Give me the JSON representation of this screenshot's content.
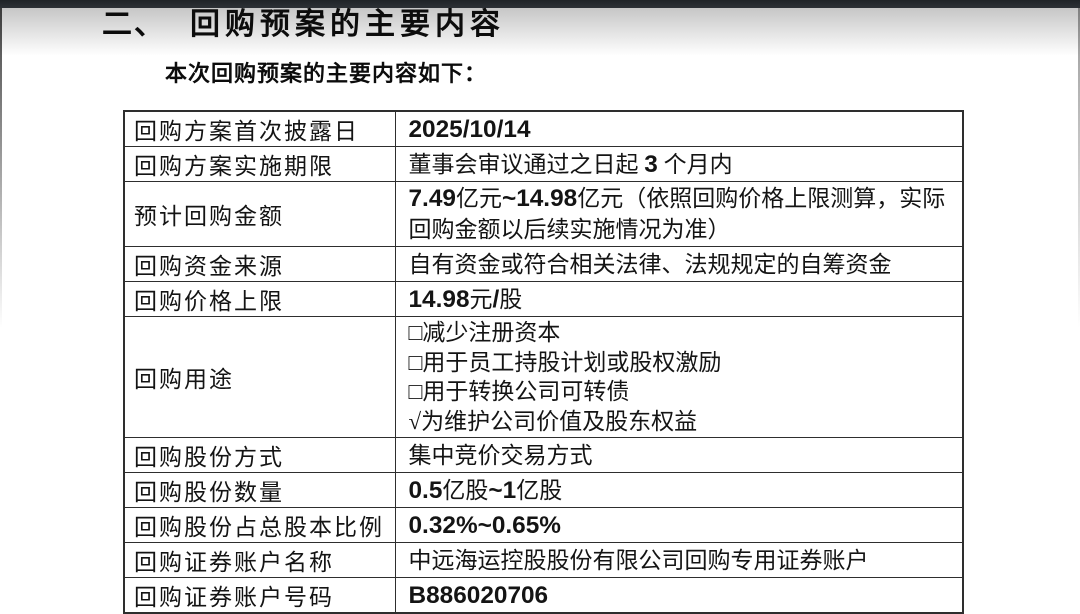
{
  "colors": {
    "topbar": "#2d3136",
    "border": "#2e2e2e",
    "text": "#111111"
  },
  "page": {
    "section_number": "二、",
    "section_title": "回购预案的主要内容",
    "intro": "本次回购预案的主要内容如下："
  },
  "table": {
    "rows": [
      {
        "label": "回购方案首次披露日",
        "value": "2025/10/14"
      },
      {
        "label": "回购方案实施期限",
        "value": "董事会审议通过之日起 3 个月内"
      },
      {
        "label": "预计回购金额",
        "value": "7.49亿元~14.98亿元（依照回购价格上限测算，实际回购金额以后续实施情况为准）"
      },
      {
        "label": "回购资金来源",
        "value": "自有资金或符合相关法律、法规规定的自筹资金"
      },
      {
        "label": "回购价格上限",
        "value": "14.98元/股"
      },
      {
        "label": "回购用途",
        "value_lines": [
          "□减少注册资本",
          "□用于员工持股计划或股权激励",
          "□用于转换公司可转债",
          "√为维护公司价值及股东权益"
        ]
      },
      {
        "label": "回购股份方式",
        "value": "集中竞价交易方式"
      },
      {
        "label": "回购股份数量",
        "value": "0.5亿股~1亿股"
      },
      {
        "label": "回购股份占总股本比例",
        "value": "0.32%~0.65%"
      },
      {
        "label": "回购证券账户名称",
        "value": "中远海运控股股份有限公司回购专用证券账户"
      },
      {
        "label": "回购证券账户号码",
        "value": "B886020706"
      }
    ]
  }
}
